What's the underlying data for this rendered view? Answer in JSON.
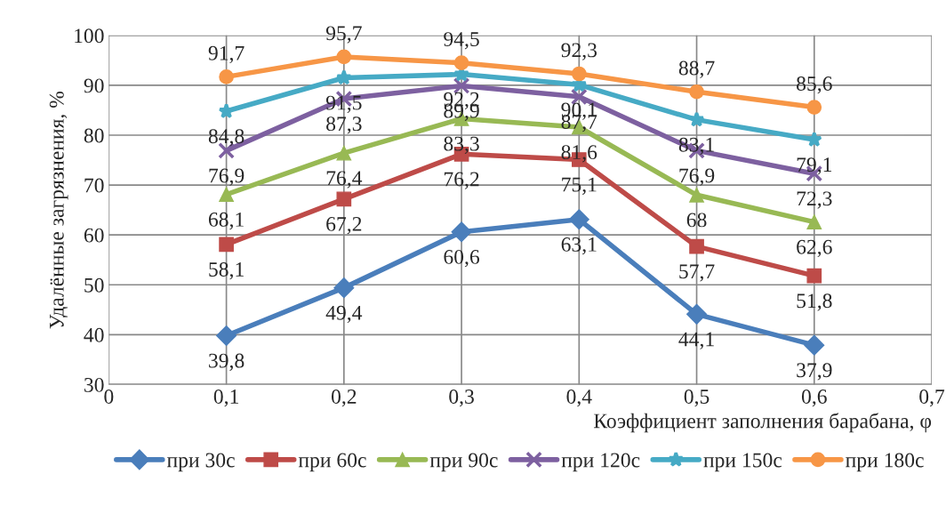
{
  "chart_data": {
    "type": "line",
    "xlabel": "Коэффициент заполнения барабана, φ",
    "ylabel": "Удалённые загрязнения, %",
    "x": [
      0.1,
      0.2,
      0.3,
      0.4,
      0.5,
      0.6
    ],
    "xlim": [
      0,
      0.7
    ],
    "xticks": [
      0,
      {
        "value": 0.1,
        "label": "0,1"
      },
      {
        "value": 0.2,
        "label": "0,2"
      },
      {
        "value": 0.3,
        "label": "0,3"
      },
      {
        "value": 0.4,
        "label": "0,4"
      },
      {
        "value": 0.5,
        "label": "0,5"
      },
      {
        "value": 0.6,
        "label": "0,6"
      },
      {
        "value": 0.7,
        "label": "0,7"
      }
    ],
    "ylim": [
      30,
      100
    ],
    "yticks": [
      30,
      40,
      50,
      60,
      70,
      80,
      90,
      100
    ],
    "grid": true,
    "legend": "bottom",
    "line_style": "solid",
    "series": [
      {
        "name": "при 30с",
        "color": "#4a7ebb",
        "marker": "diamond",
        "values": [
          39.8,
          49.4,
          60.6,
          63.1,
          44.1,
          37.9
        ],
        "value_labels": [
          "39,8",
          "49,4",
          "60,6",
          "63,1",
          "44,1",
          "37,9"
        ]
      },
      {
        "name": "при 60с",
        "color": "#be4b48",
        "marker": "square",
        "values": [
          58.1,
          67.2,
          76.2,
          75.1,
          57.7,
          51.8
        ],
        "value_labels": [
          "58,1",
          "67,2",
          "76,2",
          "75,1",
          "57,7",
          "51,8"
        ]
      },
      {
        "name": "при 90с",
        "color": "#98b954",
        "marker": "triangle",
        "values": [
          68.1,
          76.4,
          83.3,
          81.6,
          68,
          62.6
        ],
        "value_labels": [
          "68,1",
          "76,4",
          "83,3",
          "81,6",
          "68",
          "62,6"
        ]
      },
      {
        "name": "при 120с",
        "color": "#7d60a0",
        "marker": "cross",
        "values": [
          76.9,
          87.3,
          89.9,
          87.7,
          76.9,
          72.3
        ],
        "value_labels": [
          "76,9",
          "87,3",
          "89,9",
          "87,7",
          "76,9",
          "72,3"
        ]
      },
      {
        "name": "при 150с",
        "color": "#46aac5",
        "marker": "star",
        "values": [
          84.8,
          91.5,
          92.2,
          90.1,
          83.1,
          79.1
        ],
        "value_labels": [
          "84,8",
          "91,5",
          "92,2",
          "90,1",
          "83,1",
          "79,1"
        ]
      },
      {
        "name": "при 180с",
        "color": "#f79646",
        "marker": "circle",
        "values": [
          91.7,
          95.7,
          94.5,
          92.3,
          88.7,
          85.6
        ],
        "value_labels": [
          "91,7",
          "95,7",
          "94,5",
          "92,3",
          "88,7",
          "85,6"
        ]
      }
    ]
  }
}
